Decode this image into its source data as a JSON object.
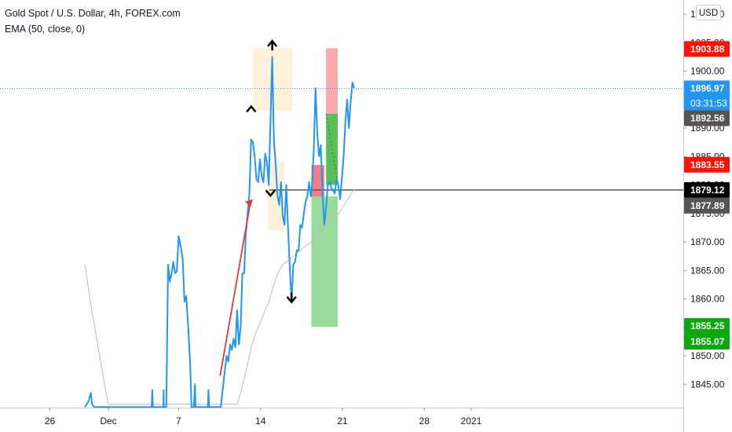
{
  "legend": {
    "symbol_line": "Gold Spot / U.S. Dollar, 4h, FOREX.com",
    "indicator_line": "EMA (50, close, 0)"
  },
  "currency_button": "USD",
  "colors": {
    "price_line": "#2196f3",
    "ema_line": "#bdbdbd",
    "red_tag": "#ff1100",
    "green_tag": "#0ba80e",
    "blue_tag": "#2196f3",
    "dark_tag": "#555555",
    "black_tag": "#000000",
    "stop_zone": "#f7a0a3",
    "target_zone": "#8fd68f",
    "highlight_box": "#fdf0d5",
    "arrow_red": "#e53935"
  },
  "chart_data": {
    "type": "line",
    "title": "Gold Spot / U.S. Dollar, 4h, FOREX.com",
    "symbol": "Gold Spot / U.S. Dollar",
    "interval": "4h",
    "exchange": "FOREX.com",
    "indicator": "EMA (50, close, 0)",
    "x_labels": [
      "26",
      "Dec",
      "7",
      "14",
      "21",
      "28",
      "2021"
    ],
    "y_ticks": [
      1845.0,
      1850.0,
      1855.0,
      1860.0,
      1865.0,
      1870.0,
      1875.0,
      1880.0,
      1885.0,
      1890.0,
      1895.0,
      1900.0,
      1905.0,
      1910.0
    ],
    "ylim": [
      1842.3,
      1912.5
    ],
    "axis_tags": [
      {
        "price": 1903.88,
        "label": "1903.88",
        "color": "red"
      },
      {
        "price": 1896.97,
        "label": "1896.97",
        "color": "blue",
        "countdown": "03:31:53"
      },
      {
        "price": 1892.56,
        "label": "1892.56",
        "color": "dark"
      },
      {
        "price": 1883.55,
        "label": "1883.55",
        "color": "red"
      },
      {
        "price": 1879.12,
        "label": "1879.12",
        "color": "black"
      },
      {
        "price": 1877.89,
        "label": "1877.89",
        "color": "dark"
      },
      {
        "price": 1855.25,
        "label": "1855.25",
        "color": "green"
      },
      {
        "price": 1855.07,
        "label": "1855.07",
        "color": "green"
      }
    ],
    "last_price": 1896.97,
    "horizontal_level": 1879.12,
    "price_series": [
      [
        -2.0,
        1841.0
      ],
      [
        -1.7,
        1842.0
      ],
      [
        -1.5,
        1843.5
      ],
      [
        -1.4,
        1841.5
      ],
      [
        -1.2,
        1841.0
      ],
      [
        0.0,
        1841.0
      ],
      [
        2.0,
        1841.0
      ],
      [
        3.7,
        1841.0
      ],
      [
        3.75,
        1844.0
      ],
      [
        3.8,
        1841.0
      ],
      [
        4.7,
        1841.0
      ],
      [
        4.72,
        1844.0
      ],
      [
        4.74,
        1841.0
      ],
      [
        4.95,
        1841.0
      ],
      [
        5.1,
        1866.0
      ],
      [
        5.25,
        1863.0
      ],
      [
        5.4,
        1864.5
      ],
      [
        5.55,
        1866.5
      ],
      [
        5.7,
        1864.5
      ],
      [
        5.85,
        1864.8
      ],
      [
        6.0,
        1871.0
      ],
      [
        6.2,
        1869.0
      ],
      [
        6.35,
        1867.0
      ],
      [
        6.5,
        1859.5
      ],
      [
        6.65,
        1860.5
      ],
      [
        6.85,
        1854.0
      ],
      [
        7.0,
        1848.0
      ],
      [
        7.1,
        1841.0
      ],
      [
        7.3,
        1841.0
      ],
      [
        7.4,
        1845.0
      ],
      [
        7.45,
        1841.0
      ],
      [
        8.5,
        1841.0
      ],
      [
        8.55,
        1844.0
      ],
      [
        8.6,
        1841.0
      ],
      [
        9.6,
        1841.0
      ],
      [
        9.9,
        1846.5
      ],
      [
        10.1,
        1850.0
      ],
      [
        10.25,
        1849.0
      ],
      [
        10.4,
        1852.0
      ],
      [
        10.55,
        1851.0
      ],
      [
        10.7,
        1853.0
      ],
      [
        10.85,
        1851.5
      ],
      [
        11.0,
        1858.0
      ],
      [
        11.15,
        1852.0
      ],
      [
        11.3,
        1855.0
      ],
      [
        11.45,
        1864.5
      ],
      [
        11.6,
        1864.5
      ],
      [
        11.75,
        1871.5
      ],
      [
        11.9,
        1875.0
      ],
      [
        12.05,
        1878.5
      ],
      [
        12.2,
        1888.0
      ],
      [
        12.35,
        1887.5
      ],
      [
        12.5,
        1885.0
      ],
      [
        12.65,
        1881.0
      ],
      [
        12.8,
        1880.5
      ],
      [
        12.95,
        1884.5
      ],
      [
        13.1,
        1881.5
      ],
      [
        13.25,
        1880.5
      ],
      [
        13.4,
        1885.5
      ],
      [
        13.55,
        1884.0
      ],
      [
        13.7,
        1880.0
      ],
      [
        13.85,
        1891.0
      ],
      [
        14.0,
        1902.5
      ],
      [
        14.15,
        1887.5
      ],
      [
        14.3,
        1883.5
      ],
      [
        14.45,
        1878.0
      ],
      [
        14.6,
        1876.5
      ],
      [
        14.75,
        1880.5
      ],
      [
        14.9,
        1874.5
      ],
      [
        15.05,
        1873.0
      ],
      [
        15.2,
        1880.0
      ],
      [
        15.35,
        1872.5
      ],
      [
        15.5,
        1865.5
      ],
      [
        15.65,
        1859.5
      ],
      [
        15.8,
        1866.0
      ],
      [
        15.95,
        1866.5
      ],
      [
        16.1,
        1868.5
      ],
      [
        16.25,
        1868.5
      ],
      [
        16.4,
        1873.0
      ],
      [
        16.55,
        1872.5
      ],
      [
        16.7,
        1875.0
      ],
      [
        16.85,
        1877.0
      ],
      [
        17.0,
        1878.0
      ],
      [
        17.15,
        1880.5
      ],
      [
        17.3,
        1878.0
      ],
      [
        17.4,
        1880.0
      ],
      [
        17.55,
        1886.0
      ],
      [
        17.7,
        1897.0
      ],
      [
        17.85,
        1889.0
      ],
      [
        18.0,
        1885.0
      ],
      [
        18.15,
        1887.0
      ],
      [
        18.3,
        1878.5
      ],
      [
        18.45,
        1873.0
      ],
      [
        18.6,
        1876.0
      ],
      [
        18.75,
        1880.0
      ],
      [
        18.9,
        1880.5
      ],
      [
        19.05,
        1879.5
      ],
      [
        19.2,
        1879.0
      ],
      [
        19.35,
        1878.5
      ],
      [
        19.5,
        1881.0
      ],
      [
        19.65,
        1880.0
      ],
      [
        19.8,
        1877.5
      ],
      [
        19.95,
        1881.0
      ],
      [
        20.1,
        1885.0
      ],
      [
        20.25,
        1891.0
      ],
      [
        20.4,
        1895.0
      ],
      [
        20.55,
        1890.0
      ],
      [
        20.7,
        1894.5
      ],
      [
        20.85,
        1898.0
      ],
      [
        21.0,
        1896.97
      ]
    ],
    "ema_series": [
      [
        -2.0,
        1866.0
      ],
      [
        -1.5,
        1859.0
      ],
      [
        -1.0,
        1853.0
      ],
      [
        -0.5,
        1847.0
      ],
      [
        -0.2,
        1843.5
      ],
      [
        0.0,
        1841.5
      ],
      [
        11.0,
        1841.5
      ],
      [
        11.3,
        1843.5
      ],
      [
        11.6,
        1846.0
      ],
      [
        11.9,
        1848.5
      ],
      [
        12.2,
        1851.5
      ],
      [
        12.5,
        1853.5
      ],
      [
        12.8,
        1855.0
      ],
      [
        13.1,
        1856.5
      ],
      [
        13.4,
        1858.0
      ],
      [
        13.7,
        1859.5
      ],
      [
        14.0,
        1861.5
      ],
      [
        14.3,
        1863.5
      ],
      [
        14.6,
        1865.0
      ],
      [
        14.9,
        1866.0
      ],
      [
        15.2,
        1866.5
      ],
      [
        15.5,
        1867.0
      ],
      [
        15.8,
        1867.5
      ],
      [
        16.1,
        1868.0
      ],
      [
        16.4,
        1868.5
      ],
      [
        16.7,
        1869.0
      ],
      [
        17.0,
        1869.5
      ],
      [
        17.3,
        1870.0
      ],
      [
        17.6,
        1870.5
      ],
      [
        17.9,
        1871.5
      ],
      [
        18.2,
        1872.5
      ],
      [
        18.5,
        1873.0
      ],
      [
        18.8,
        1873.5
      ],
      [
        19.1,
        1874.0
      ],
      [
        19.4,
        1874.5
      ],
      [
        19.7,
        1875.0
      ],
      [
        20.0,
        1876.0
      ],
      [
        20.3,
        1877.0
      ],
      [
        20.6,
        1878.0
      ],
      [
        20.9,
        1879.0
      ],
      [
        21.0,
        1879.3
      ]
    ]
  }
}
